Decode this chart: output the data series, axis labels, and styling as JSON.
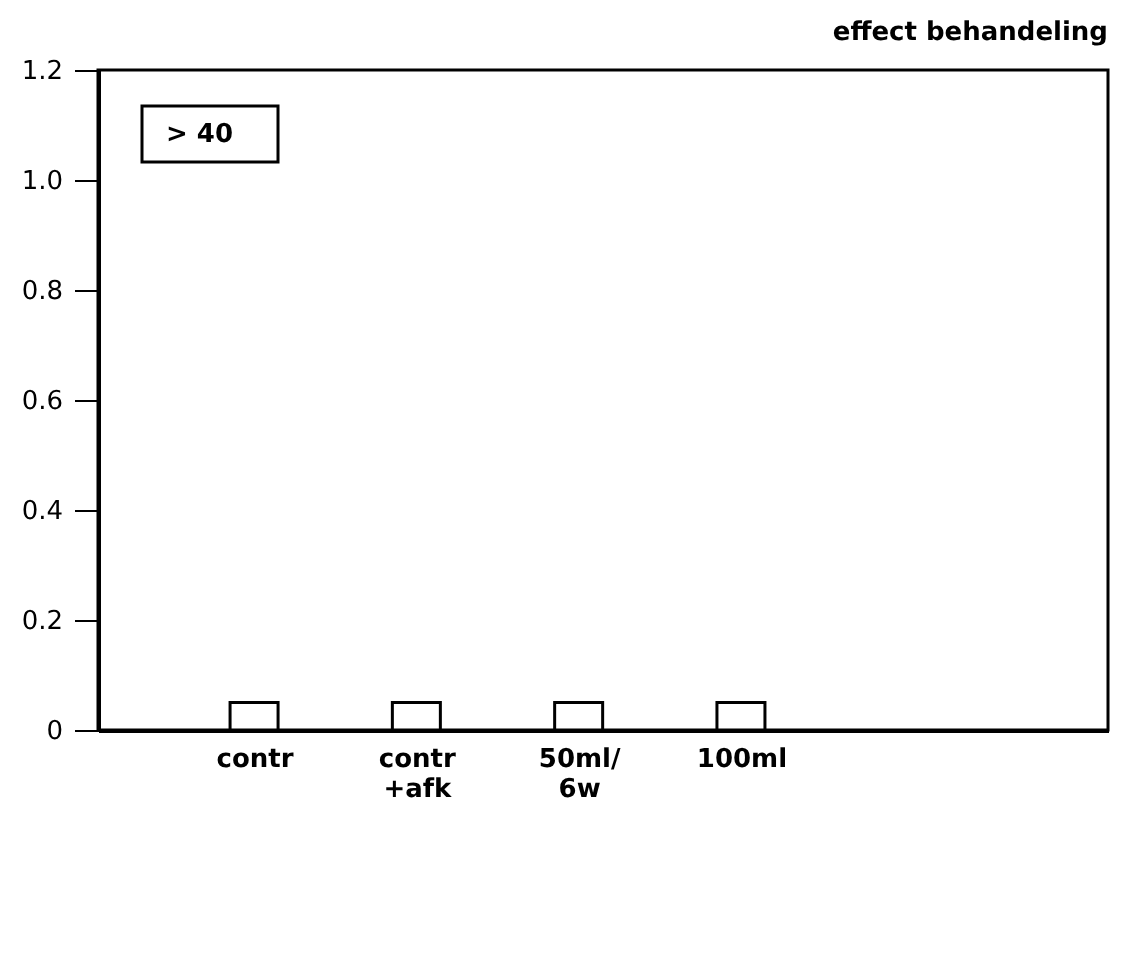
{
  "chart_data": {
    "type": "bar",
    "title": "effect behandeling",
    "categories": [
      "contr",
      "contr\n+afk",
      "50ml/\n6w",
      "100ml"
    ],
    "series": [
      {
        "color": "#ffffff",
        "values": [
          0.05,
          0.05,
          0.05,
          0.05
        ]
      }
    ],
    "ylim": [
      0,
      1.2
    ],
    "yticks": [
      0,
      0.2,
      0.4,
      0.6,
      0.8,
      {
        "value": 1.0,
        "label": "1.0"
      },
      1.2
    ],
    "annotations": [
      "> 40"
    ],
    "grid": false
  }
}
